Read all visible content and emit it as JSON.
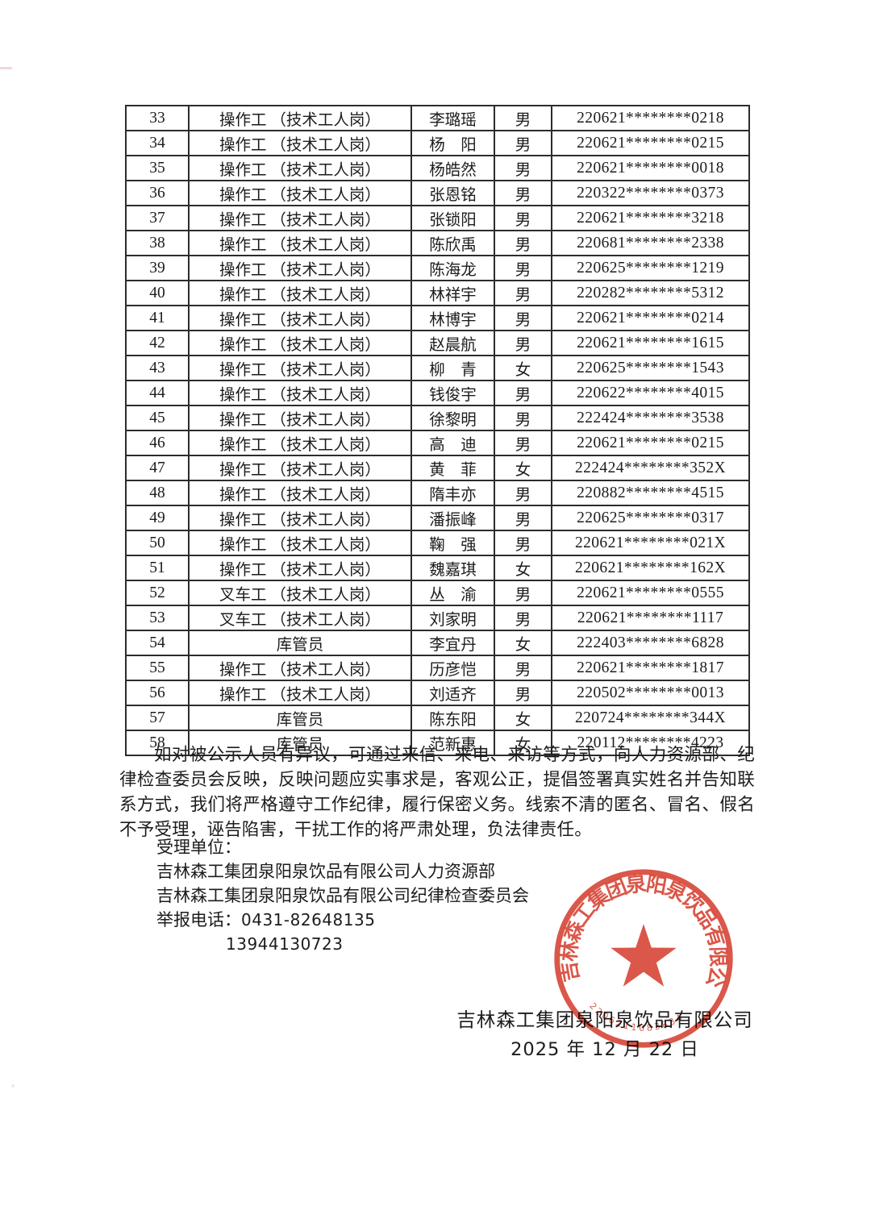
{
  "table": {
    "rows": [
      {
        "no": "33",
        "position": "操作工 （技术工人岗）",
        "name": "李璐瑶",
        "gender": "男",
        "id": "220621********0218"
      },
      {
        "no": "34",
        "position": "操作工 （技术工人岗）",
        "name": "杨　阳",
        "gender": "男",
        "id": "220621********0215"
      },
      {
        "no": "35",
        "position": "操作工 （技术工人岗）",
        "name": "杨皓然",
        "gender": "男",
        "id": "220621********0018"
      },
      {
        "no": "36",
        "position": "操作工 （技术工人岗）",
        "name": "张恩铭",
        "gender": "男",
        "id": "220322********0373"
      },
      {
        "no": "37",
        "position": "操作工 （技术工人岗）",
        "name": "张锁阳",
        "gender": "男",
        "id": "220621********3218"
      },
      {
        "no": "38",
        "position": "操作工 （技术工人岗）",
        "name": "陈欣禹",
        "gender": "男",
        "id": "220681********2338"
      },
      {
        "no": "39",
        "position": "操作工 （技术工人岗）",
        "name": "陈海龙",
        "gender": "男",
        "id": "220625********1219"
      },
      {
        "no": "40",
        "position": "操作工 （技术工人岗）",
        "name": "林祥宇",
        "gender": "男",
        "id": "220282********5312"
      },
      {
        "no": "41",
        "position": "操作工 （技术工人岗）",
        "name": "林博宇",
        "gender": "男",
        "id": "220621********0214"
      },
      {
        "no": "42",
        "position": "操作工 （技术工人岗）",
        "name": "赵晨航",
        "gender": "男",
        "id": "220621********1615"
      },
      {
        "no": "43",
        "position": "操作工 （技术工人岗）",
        "name": "柳　青",
        "gender": "女",
        "id": "220625********1543"
      },
      {
        "no": "44",
        "position": "操作工 （技术工人岗）",
        "name": "钱俊宇",
        "gender": "男",
        "id": "220622********4015"
      },
      {
        "no": "45",
        "position": "操作工 （技术工人岗）",
        "name": "徐黎明",
        "gender": "男",
        "id": "222424********3538"
      },
      {
        "no": "46",
        "position": "操作工 （技术工人岗）",
        "name": "高　迪",
        "gender": "男",
        "id": "220621********0215"
      },
      {
        "no": "47",
        "position": "操作工 （技术工人岗）",
        "name": "黄　菲",
        "gender": "女",
        "id": "222424********352X"
      },
      {
        "no": "48",
        "position": "操作工 （技术工人岗）",
        "name": "隋丰亦",
        "gender": "男",
        "id": "220882********4515"
      },
      {
        "no": "49",
        "position": "操作工 （技术工人岗）",
        "name": "潘振峰",
        "gender": "男",
        "id": "220625********0317"
      },
      {
        "no": "50",
        "position": "操作工 （技术工人岗）",
        "name": "鞠　强",
        "gender": "男",
        "id": "220621********021X"
      },
      {
        "no": "51",
        "position": "操作工 （技术工人岗）",
        "name": "魏嘉琪",
        "gender": "女",
        "id": "220621********162X"
      },
      {
        "no": "52",
        "position": "叉车工 （技术工人岗）",
        "name": "丛　渝",
        "gender": "男",
        "id": "220621********0555"
      },
      {
        "no": "53",
        "position": "叉车工 （技术工人岗）",
        "name": "刘家明",
        "gender": "男",
        "id": "220621********1117"
      },
      {
        "no": "54",
        "position": "库管员",
        "name": "李宜丹",
        "gender": "女",
        "id": "222403********6828"
      },
      {
        "no": "55",
        "position": "操作工 （技术工人岗）",
        "name": "历彦恺",
        "gender": "男",
        "id": "220621********1817"
      },
      {
        "no": "56",
        "position": "操作工 （技术工人岗）",
        "name": "刘适齐",
        "gender": "男",
        "id": "220502********0013"
      },
      {
        "no": "57",
        "position": "库管员",
        "name": "陈东阳",
        "gender": "女",
        "id": "220724********344X"
      },
      {
        "no": "58",
        "position": "库管员",
        "name": "范新惠",
        "gender": "女",
        "id": "220112********4223"
      }
    ]
  },
  "notice": {
    "paragraph": "如对被公示人员有异议，可通过来信、来电、来访等方式，向人力资源部、纪律检查委员会反映，反映问题应实事求是，客观公正，提倡签署真实姓名并告知联系方式，我们将严格遵守工作纪律，履行保密义务。线索不清的匿名、冒名、假名不予受理，诬告陷害，干扰工作的将严肃处理，负法律责任。"
  },
  "contact": {
    "acceptor_label": "受理单位：",
    "unit_hr": "吉林森工集团泉阳泉饮品有限公司人力资源部",
    "unit_discipline": "吉林森工集团泉阳泉饮品有限公司纪律检查委员会",
    "hotline_label": "举报电话：",
    "hotline_1": "0431-82648135",
    "hotline_2": "13944130723"
  },
  "seal": {
    "company": "吉林森工集团泉阳泉饮品有限公司",
    "serial": "2206211083834",
    "color": "#d43a2a"
  },
  "signature": {
    "company": "吉林森工集团泉阳泉饮品有限公司",
    "date": "2025 年 12 月 22 日"
  }
}
